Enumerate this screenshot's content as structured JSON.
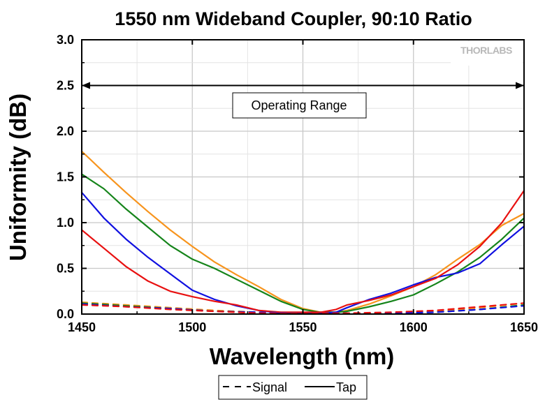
{
  "chart_data": {
    "type": "line",
    "title": "1550 nm Wideband Coupler, 90:10 Ratio",
    "xlabel": "Wavelength (nm)",
    "ylabel": "Uniformity (dB)",
    "xlim": [
      1450,
      1650
    ],
    "ylim": [
      0,
      3.0
    ],
    "x_ticks": [
      "1450",
      "1500",
      "1550",
      "1600",
      "1650"
    ],
    "y_ticks": [
      "0.0",
      "0.5",
      "1.0",
      "1.5",
      "2.0",
      "2.5",
      "3.0"
    ],
    "grid": true,
    "logo": "THORLABS",
    "annotation": {
      "text": "Operating Range",
      "from": 1450,
      "to": 1650,
      "y": 2.5
    },
    "legend": {
      "placement": "bottom-center",
      "entries": [
        {
          "label": "Signal",
          "style": "dashed"
        },
        {
          "label": "Tap",
          "style": "solid"
        }
      ]
    },
    "colors": {
      "orange": "#f7941d",
      "green": "#15841a",
      "blue": "#1010e0",
      "red": "#e81010"
    },
    "series": [
      {
        "color": "orange",
        "style": "solid",
        "x": [
          1450,
          1460,
          1470,
          1480,
          1490,
          1500,
          1510,
          1520,
          1530,
          1540,
          1550,
          1558,
          1565,
          1570,
          1580,
          1590,
          1600,
          1610,
          1620,
          1630,
          1640,
          1650
        ],
        "y": [
          1.78,
          1.55,
          1.33,
          1.12,
          0.92,
          0.74,
          0.57,
          0.43,
          0.3,
          0.16,
          0.06,
          0.02,
          0.02,
          0.04,
          0.11,
          0.2,
          0.3,
          0.43,
          0.6,
          0.76,
          0.97,
          1.1
        ]
      },
      {
        "color": "green",
        "style": "solid",
        "x": [
          1450,
          1460,
          1470,
          1480,
          1490,
          1500,
          1510,
          1520,
          1530,
          1540,
          1550,
          1558,
          1565,
          1570,
          1580,
          1590,
          1600,
          1610,
          1620,
          1630,
          1640,
          1650
        ],
        "y": [
          1.53,
          1.37,
          1.15,
          0.95,
          0.75,
          0.6,
          0.5,
          0.38,
          0.26,
          0.14,
          0.05,
          0.02,
          0.02,
          0.03,
          0.08,
          0.14,
          0.21,
          0.33,
          0.46,
          0.62,
          0.82,
          1.05
        ]
      },
      {
        "color": "blue",
        "style": "solid",
        "x": [
          1450,
          1460,
          1470,
          1480,
          1490,
          1500,
          1510,
          1520,
          1530,
          1540,
          1550,
          1558,
          1565,
          1570,
          1580,
          1590,
          1600,
          1610,
          1620,
          1630,
          1640,
          1650
        ],
        "y": [
          1.33,
          1.05,
          0.82,
          0.62,
          0.44,
          0.26,
          0.16,
          0.09,
          0.04,
          0.01,
          0.01,
          0.01,
          0.02,
          0.07,
          0.16,
          0.23,
          0.32,
          0.4,
          0.45,
          0.55,
          0.76,
          0.96
        ]
      },
      {
        "color": "red",
        "style": "solid",
        "x": [
          1450,
          1460,
          1470,
          1480,
          1490,
          1500,
          1510,
          1520,
          1530,
          1540,
          1550,
          1558,
          1565,
          1570,
          1580,
          1590,
          1600,
          1610,
          1620,
          1630,
          1640,
          1650
        ],
        "y": [
          0.92,
          0.72,
          0.52,
          0.36,
          0.25,
          0.19,
          0.14,
          0.1,
          0.04,
          0.02,
          0.02,
          0.02,
          0.05,
          0.1,
          0.15,
          0.21,
          0.3,
          0.39,
          0.54,
          0.74,
          1.0,
          1.35
        ]
      },
      {
        "color": "orange",
        "style": "dashed",
        "x": [
          1450,
          1470,
          1490,
          1510,
          1530,
          1550,
          1570,
          1590,
          1610,
          1630,
          1650
        ],
        "y": [
          0.13,
          0.1,
          0.07,
          0.04,
          0.02,
          0.01,
          0.01,
          0.01,
          0.03,
          0.07,
          0.12
        ]
      },
      {
        "color": "green",
        "style": "dashed",
        "x": [
          1450,
          1470,
          1490,
          1510,
          1530,
          1550,
          1570,
          1590,
          1610,
          1630,
          1650
        ],
        "y": [
          0.12,
          0.09,
          0.06,
          0.03,
          0.02,
          0.01,
          0.01,
          0.01,
          0.02,
          0.05,
          0.1
        ]
      },
      {
        "color": "blue",
        "style": "dashed",
        "x": [
          1450,
          1470,
          1490,
          1510,
          1530,
          1550,
          1570,
          1590,
          1610,
          1630,
          1650
        ],
        "y": [
          0.11,
          0.08,
          0.06,
          0.03,
          0.02,
          0.01,
          0.01,
          0.01,
          0.02,
          0.05,
          0.09
        ]
      },
      {
        "color": "red",
        "style": "dashed",
        "x": [
          1450,
          1470,
          1490,
          1510,
          1530,
          1550,
          1570,
          1590,
          1610,
          1630,
          1650
        ],
        "y": [
          0.1,
          0.08,
          0.05,
          0.03,
          0.01,
          0.01,
          0.01,
          0.02,
          0.04,
          0.08,
          0.12
        ]
      }
    ]
  }
}
